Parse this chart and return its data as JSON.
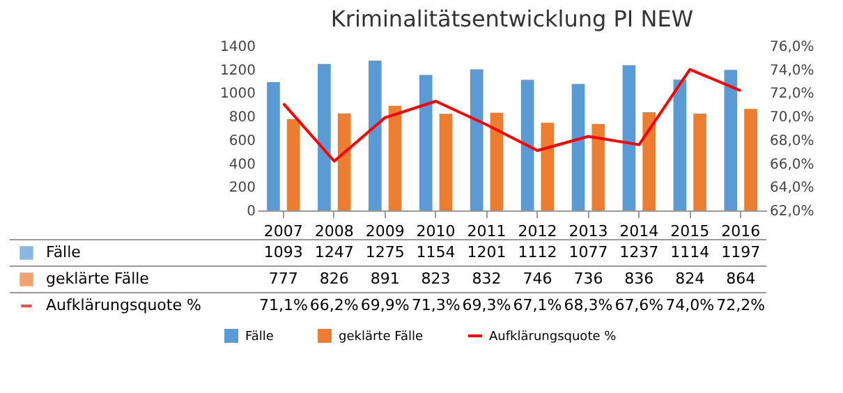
{
  "chart_data": {
    "type": "bar",
    "title": "Kriminalitätsentwicklung PI NEW",
    "categories": [
      "2007",
      "2008",
      "2009",
      "2010",
      "2011",
      "2012",
      "2013",
      "2014",
      "2015",
      "2016"
    ],
    "series": [
      {
        "name": "Fälle",
        "color": "#5b9bd5",
        "values": [
          1093,
          1247,
          1275,
          1154,
          1201,
          1112,
          1077,
          1237,
          1114,
          1197
        ],
        "value_labels": [
          "1093",
          "1247",
          "1275",
          "1154",
          "1201",
          "1112",
          "1077",
          "1237",
          "1114",
          "1197"
        ]
      },
      {
        "name": "geklärte Fälle",
        "color": "#ed7d31",
        "values": [
          777,
          826,
          891,
          823,
          832,
          746,
          736,
          836,
          824,
          864
        ],
        "value_labels": [
          "777",
          "826",
          "891",
          "823",
          "832",
          "746",
          "736",
          "836",
          "824",
          "864"
        ]
      },
      {
        "name": "Aufklärungsquote %",
        "type": "line",
        "axis": "y2",
        "color": "#ff0000",
        "line_style": "solid",
        "marker": "none",
        "values": [
          71.1,
          66.2,
          69.9,
          71.3,
          69.3,
          67.1,
          68.3,
          67.6,
          74.0,
          72.2
        ],
        "value_labels": [
          "71,1%",
          "66,2%",
          "69,9%",
          "71,3%",
          "69,3%",
          "67,1%",
          "68,3%",
          "67,6%",
          "74,0%",
          "72,2%"
        ]
      }
    ],
    "ylim": [
      0,
      1400
    ],
    "yticks": [
      0,
      200,
      400,
      600,
      800,
      1000,
      1200,
      1400
    ],
    "y2lim": [
      62,
      76
    ],
    "y2ticks": [
      {
        "value": 62,
        "label": "62,0%"
      },
      {
        "value": 64,
        "label": "64,0%"
      },
      {
        "value": 66,
        "label": "66,0%"
      },
      {
        "value": 68,
        "label": "68,0%"
      },
      {
        "value": 70,
        "label": "70,0%"
      },
      {
        "value": 72,
        "label": "72,0%"
      },
      {
        "value": 74,
        "label": "74,0%"
      },
      {
        "value": 76,
        "label": "76,0%"
      }
    ],
    "legend": "bottom"
  }
}
